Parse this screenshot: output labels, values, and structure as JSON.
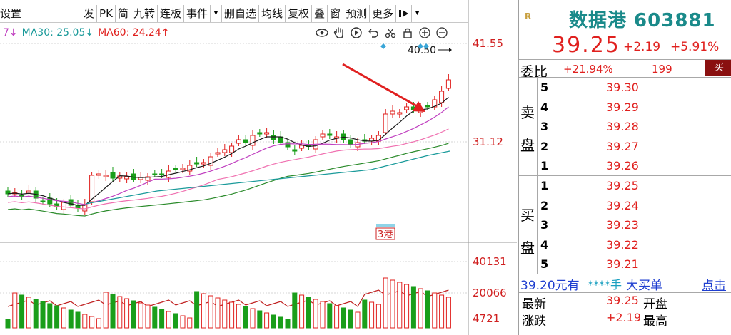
{
  "toolbar": {
    "items": [
      "设置",
      "发",
      "PK",
      "简",
      "九转",
      "连板",
      "事件",
      "删自选",
      "均线",
      "复权",
      "叠",
      "窗",
      "预测",
      "更多"
    ],
    "more_arrow": "▼",
    "dropdown_1": "▼",
    "collapse_icon": "collapse-panel-icon"
  },
  "chart": {
    "ma_partial": "7↓",
    "ma30_label": "MA30: 25.05↓",
    "ma60_label": "MA60: 24.24↑",
    "colors": {
      "ma30": "#1a9a9a",
      "ma60": "#e0201e",
      "up": "#e0201e",
      "down": "#1a9e1a"
    },
    "price_labels": [
      "41.55",
      "31.12"
    ],
    "max_label": "40.50",
    "event_tag": "3港",
    "volume_labels": [
      "40131",
      "20066",
      "4721"
    ],
    "tools": [
      "eye-icon",
      "hand-icon",
      "play-icon",
      "undo-icon",
      "scissors-icon",
      "lock-icon",
      "zoom-in-icon",
      "zoom-out-icon"
    ]
  },
  "chart_data": {
    "type": "candlestick",
    "y_ticks": [
      41.55,
      31.12
    ],
    "highest": 40.5,
    "volume_ticks": [
      40131,
      20066,
      4721
    ]
  },
  "quote": {
    "logo": "R",
    "stock_name": "数据港 603881",
    "price": "39.25",
    "change": "+2.19",
    "change_pct": "+5.91%",
    "weibi_label": "委比",
    "weibi_value": "+21.94%",
    "weicha_value": "199",
    "sell_label_1": "卖",
    "sell_label_2": "盘",
    "buy_label_1": "买",
    "buy_label_2": "盘",
    "asks": [
      {
        "level": "5",
        "price": "39.30"
      },
      {
        "level": "4",
        "price": "39.29"
      },
      {
        "level": "3",
        "price": "39.28"
      },
      {
        "level": "2",
        "price": "39.27"
      },
      {
        "level": "1",
        "price": "39.26"
      }
    ],
    "bids": [
      {
        "level": "1",
        "price": "39.25"
      },
      {
        "level": "2",
        "price": "39.24"
      },
      {
        "level": "3",
        "price": "39.23"
      },
      {
        "level": "4",
        "price": "39.22"
      },
      {
        "level": "5",
        "price": "39.21"
      }
    ],
    "bigorder_price": "39.20元有",
    "bigorder_qty": "****手",
    "bigorder_type": "大买单",
    "bigorder_link": "点击",
    "latest_label": "最新",
    "latest_value": "39.25",
    "open_label": "开盘",
    "change_label": "涨跌",
    "change_value": "+2.19",
    "high_label": "最高",
    "buy_button": "买"
  }
}
